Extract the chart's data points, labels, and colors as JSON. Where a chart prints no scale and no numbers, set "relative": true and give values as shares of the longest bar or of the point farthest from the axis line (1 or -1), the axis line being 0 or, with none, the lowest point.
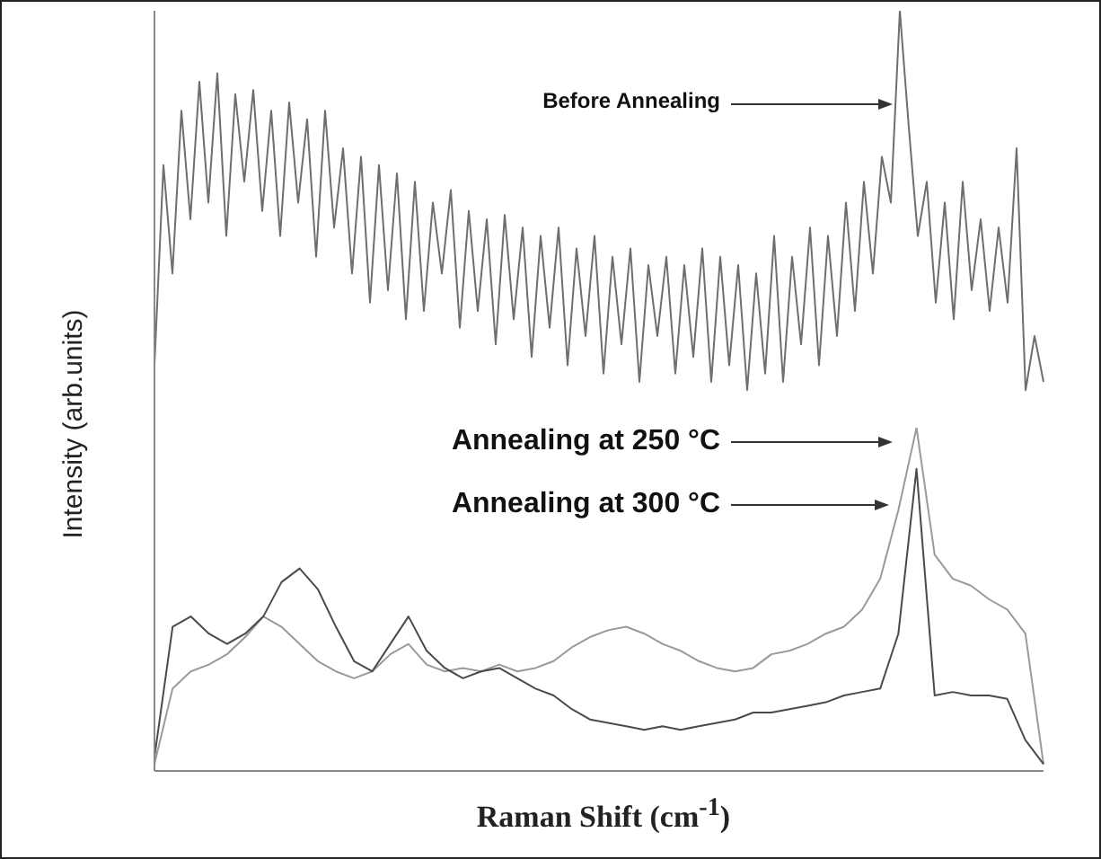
{
  "chart_data": [
    {
      "type": "line",
      "relative": true,
      "ylabel": "Intensity (arb.units)",
      "marker": "none",
      "annotations": [
        "Before Annealing"
      ],
      "categories": [
        null,
        null,
        null,
        null,
        null,
        null,
        null,
        null,
        null,
        null,
        null,
        null,
        null,
        null,
        null,
        null,
        null,
        null,
        null,
        null,
        null,
        null,
        null,
        null,
        null,
        null,
        null,
        null,
        null,
        null,
        null,
        null,
        null,
        null,
        null,
        null,
        null,
        null,
        null,
        null,
        null,
        null,
        null,
        null,
        null,
        null,
        null,
        null,
        null,
        null,
        null,
        null,
        null,
        null,
        null,
        null,
        null,
        null,
        null,
        null,
        null,
        null,
        null,
        null,
        null,
        null,
        null,
        null,
        null,
        null,
        null,
        null,
        null,
        null,
        null,
        null,
        null,
        null,
        null,
        null,
        null,
        null,
        null,
        null,
        null,
        null,
        null,
        null,
        null,
        null,
        null,
        null,
        null,
        null,
        null,
        null,
        null,
        null,
        null,
        null
      ],
      "series": [
        {
          "color": "#6e6e6e",
          "values": [
            0.15,
            0.63,
            0.37,
            0.76,
            0.5,
            0.83,
            0.54,
            0.85,
            0.46,
            0.8,
            0.59,
            0.81,
            0.52,
            0.76,
            0.46,
            0.78,
            0.54,
            0.74,
            0.41,
            0.76,
            0.48,
            0.67,
            0.37,
            0.65,
            0.3,
            0.63,
            0.33,
            0.61,
            0.26,
            0.59,
            0.28,
            0.54,
            0.37,
            0.57,
            0.24,
            0.52,
            0.28,
            0.5,
            0.2,
            0.51,
            0.26,
            0.48,
            0.17,
            0.46,
            0.24,
            0.48,
            0.15,
            0.43,
            0.22,
            0.46,
            0.13,
            0.41,
            0.2,
            0.43,
            0.11,
            0.39,
            0.22,
            0.41,
            0.13,
            0.39,
            0.17,
            0.43,
            0.11,
            0.41,
            0.15,
            0.39,
            0.09,
            0.37,
            0.13,
            0.46,
            0.11,
            0.41,
            0.2,
            0.48,
            0.15,
            0.46,
            0.22,
            0.54,
            0.28,
            0.59,
            0.37,
            0.65,
            0.54,
            1,
            0.72,
            0.46,
            0.59,
            0.3,
            0.54,
            0.26,
            0.59,
            0.33,
            0.5,
            0.28,
            0.48,
            0.3,
            0.67,
            0.09,
            0.22,
            0.11
          ]
        }
      ]
    },
    {
      "type": "line",
      "relative": true,
      "xlabel": "Raman Shift (cm$^{-1}$)",
      "marker": "none",
      "annotations": [
        "Annealing at 250 °C",
        "Annealing at 300 °C"
      ],
      "categories": [
        null,
        null,
        null,
        null,
        null,
        null,
        null,
        null,
        null,
        null,
        null,
        null,
        null,
        null,
        null,
        null,
        null,
        null,
        null,
        null,
        null,
        null,
        null,
        null,
        null,
        null,
        null,
        null,
        null,
        null,
        null,
        null,
        null,
        null,
        null,
        null,
        null,
        null,
        null,
        null,
        null,
        null,
        null,
        null,
        null,
        null,
        null,
        null,
        null,
        null
      ],
      "series": [
        {
          "color": "#9a9a9a",
          "values": [
            0.02,
            0.24,
            0.29,
            0.31,
            0.34,
            0.39,
            0.45,
            0.42,
            0.37,
            0.32,
            0.29,
            0.27,
            0.29,
            0.34,
            0.37,
            0.31,
            0.29,
            0.3,
            0.29,
            0.31,
            0.29,
            0.3,
            0.32,
            0.36,
            0.39,
            0.41,
            0.42,
            0.4,
            0.37,
            0.35,
            0.32,
            0.3,
            0.29,
            0.3,
            0.34,
            0.35,
            0.37,
            0.4,
            0.42,
            0.47,
            0.56,
            0.76,
            1,
            0.63,
            0.56,
            0.54,
            0.5,
            0.47,
            0.4,
            0.02
          ]
        },
        {
          "color": "#4a4a4a",
          "values": [
            0.04,
            0.42,
            0.45,
            0.4,
            0.37,
            0.4,
            0.45,
            0.55,
            0.59,
            0.53,
            0.42,
            0.32,
            0.29,
            0.37,
            0.45,
            0.35,
            0.3,
            0.27,
            0.29,
            0.3,
            0.27,
            0.24,
            0.22,
            0.18,
            0.15,
            0.14,
            0.13,
            0.12,
            0.13,
            0.12,
            0.13,
            0.14,
            0.15,
            0.17,
            0.17,
            0.18,
            0.19,
            0.2,
            0.22,
            0.23,
            0.24,
            0.4,
            0.88,
            0.22,
            0.23,
            0.22,
            0.22,
            0.21,
            0.09,
            0.02
          ]
        }
      ]
    }
  ]
}
